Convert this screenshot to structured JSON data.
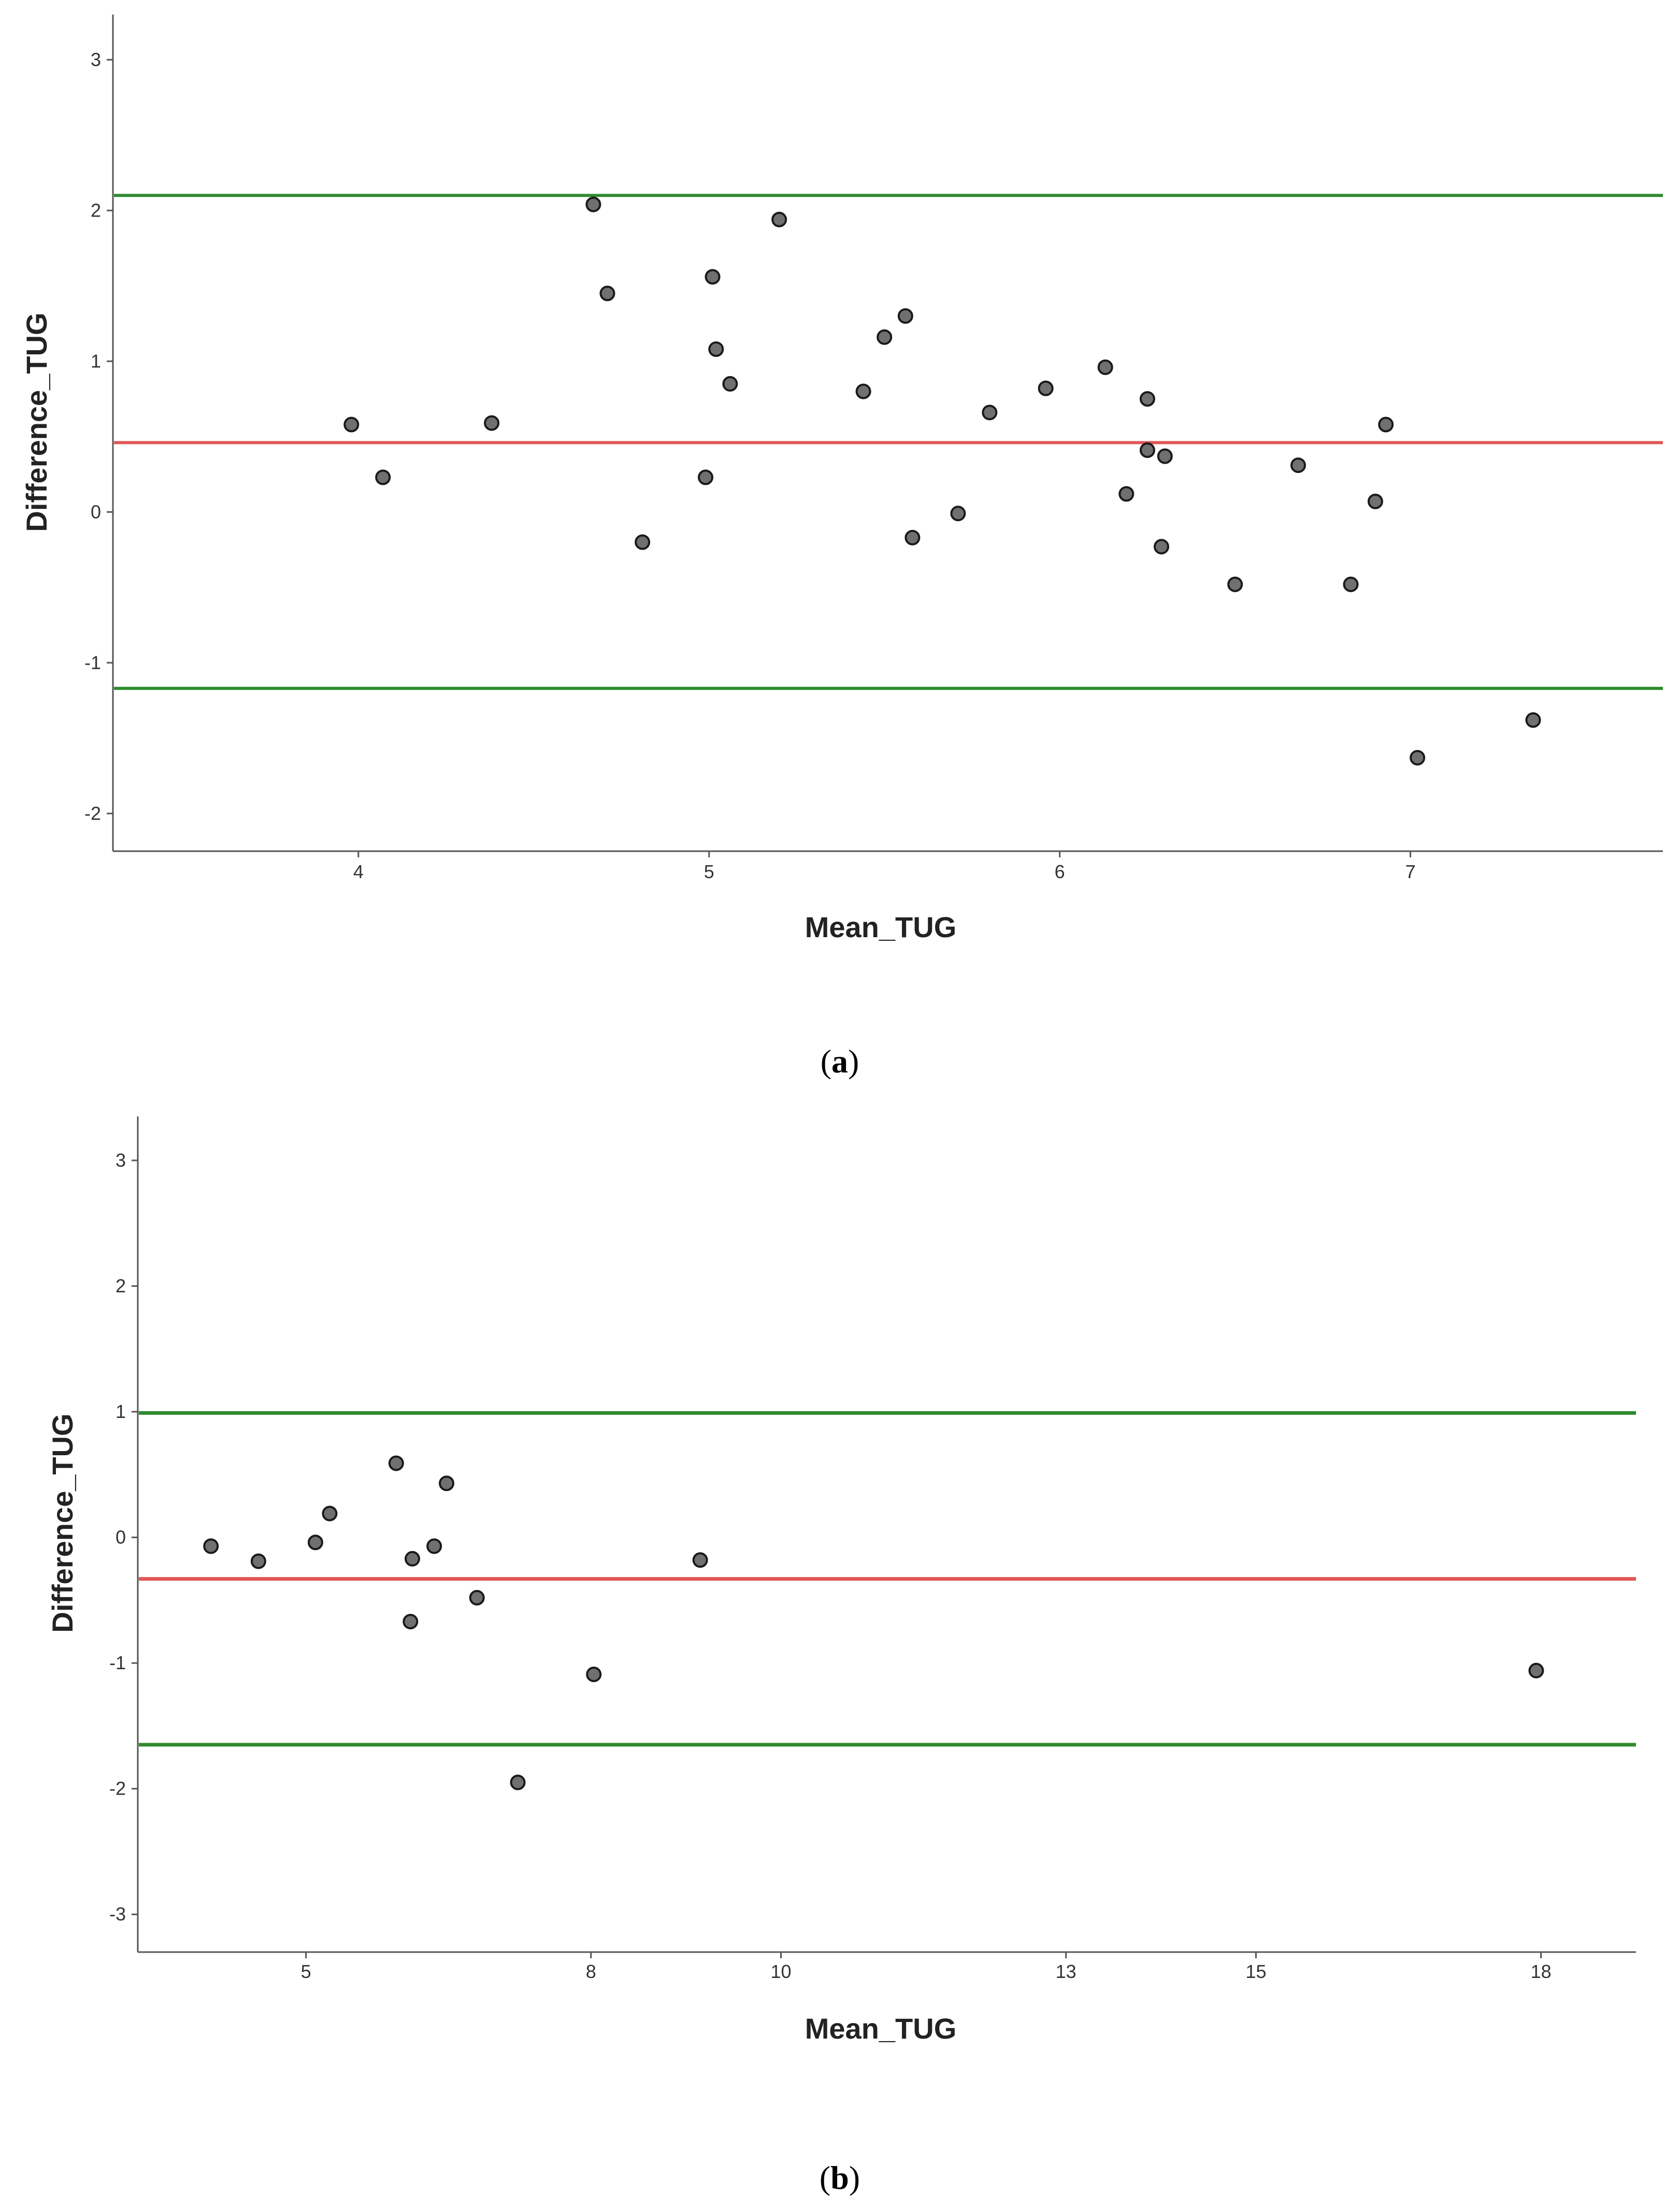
{
  "chart_data": [
    {
      "type": "scatter",
      "caption_letter": "a",
      "xlabel": "Mean_TUG",
      "ylabel": "Difference_TUG",
      "xlim": [
        3.3,
        7.72
      ],
      "ylim": [
        -2.25,
        3.3
      ],
      "xticks": [
        4,
        5,
        6,
        7
      ],
      "yticks": [
        3,
        2,
        1,
        0,
        -1,
        -2
      ],
      "reference_lines": [
        {
          "name": "upper-loa-line",
          "value": 2.1,
          "color": "#2e8b2e"
        },
        {
          "name": "mean-difference-line",
          "value": 0.46,
          "color": "#e05656"
        },
        {
          "name": "lower-loa-line",
          "value": -1.17,
          "color": "#2e8b2e"
        }
      ],
      "points": [
        {
          "x": 3.98,
          "y": 0.58
        },
        {
          "x": 4.07,
          "y": 0.23
        },
        {
          "x": 4.38,
          "y": 0.59
        },
        {
          "x": 4.67,
          "y": 2.04
        },
        {
          "x": 4.71,
          "y": 1.45
        },
        {
          "x": 4.81,
          "y": -0.2
        },
        {
          "x": 4.99,
          "y": 0.23
        },
        {
          "x": 5.01,
          "y": 1.56
        },
        {
          "x": 5.02,
          "y": 1.08
        },
        {
          "x": 5.06,
          "y": 0.85
        },
        {
          "x": 5.2,
          "y": 1.94
        },
        {
          "x": 5.44,
          "y": 0.8
        },
        {
          "x": 5.5,
          "y": 1.16
        },
        {
          "x": 5.56,
          "y": 1.3
        },
        {
          "x": 5.58,
          "y": -0.17
        },
        {
          "x": 5.71,
          "y": -0.01
        },
        {
          "x": 5.8,
          "y": 0.66
        },
        {
          "x": 5.96,
          "y": 0.82
        },
        {
          "x": 6.13,
          "y": 0.96
        },
        {
          "x": 6.19,
          "y": 0.12
        },
        {
          "x": 6.25,
          "y": 0.75
        },
        {
          "x": 6.25,
          "y": 0.41
        },
        {
          "x": 6.29,
          "y": -0.23
        },
        {
          "x": 6.3,
          "y": 0.37
        },
        {
          "x": 6.5,
          "y": -0.48
        },
        {
          "x": 6.68,
          "y": 0.31
        },
        {
          "x": 6.83,
          "y": -0.48
        },
        {
          "x": 6.9,
          "y": 0.07
        },
        {
          "x": 6.93,
          "y": 0.58
        },
        {
          "x": 7.02,
          "y": -1.63
        },
        {
          "x": 7.35,
          "y": -1.38
        }
      ]
    },
    {
      "type": "scatter",
      "caption_letter": "b",
      "xlabel": "Mean_TUG",
      "ylabel": "Difference_TUG",
      "xlim": [
        3.23,
        19.0
      ],
      "ylim": [
        -3.3,
        3.35
      ],
      "xticks": [
        5,
        8,
        10,
        13,
        15,
        18
      ],
      "xtick_positions": [
        5,
        8,
        10,
        13,
        15,
        18
      ],
      "xtick_labels": [
        "5",
        "8",
        "10",
        "13",
        "15",
        "18"
      ],
      "yticks": [
        3,
        2,
        1,
        0,
        -1,
        -2,
        -3
      ],
      "reference_lines": [
        {
          "name": "upper-loa-line",
          "value": 0.99,
          "color": "#2e8b2e"
        },
        {
          "name": "mean-difference-line",
          "value": -0.33,
          "color": "#e05656"
        },
        {
          "name": "lower-loa-line",
          "value": -1.65,
          "color": "#2e8b2e"
        }
      ],
      "points": [
        {
          "x": 4.0,
          "y": -0.07
        },
        {
          "x": 4.5,
          "y": -0.19
        },
        {
          "x": 5.1,
          "y": -0.04
        },
        {
          "x": 5.25,
          "y": 0.19
        },
        {
          "x": 5.95,
          "y": 0.59
        },
        {
          "x": 6.1,
          "y": -0.67
        },
        {
          "x": 6.12,
          "y": -0.17
        },
        {
          "x": 6.35,
          "y": -0.07
        },
        {
          "x": 6.48,
          "y": 0.43
        },
        {
          "x": 6.8,
          "y": -0.48
        },
        {
          "x": 7.23,
          "y": -1.95
        },
        {
          "x": 8.03,
          "y": -1.09
        },
        {
          "x": 9.15,
          "y": -0.18
        },
        {
          "x": 17.95,
          "y": -1.06
        }
      ]
    }
  ]
}
